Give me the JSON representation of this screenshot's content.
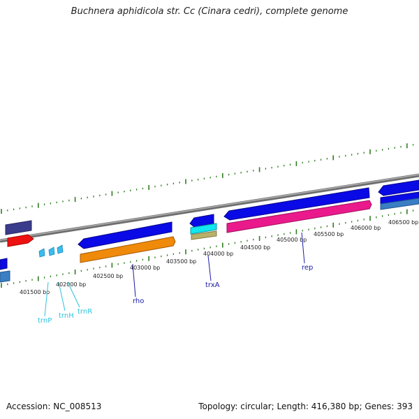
{
  "title": "Buchnera aphidicola str. Cc (Cinara cedri), complete genome",
  "footer": {
    "accession": "Accession: NC_008513",
    "summary": "Topology: circular; Length: 416,380 bp; Genes: 393"
  },
  "colors": {
    "backbone": "#8a8a8a",
    "ticks": "#2e7d1f",
    "cds_blue": "#0a0ae6",
    "cds_navy": "#3b3b8c",
    "cds_red": "#ee1111",
    "cds_orange": "#ef8a0a",
    "cds_magenta": "#ea1a8c",
    "cds_cyan": "#12e6ee",
    "cds_khaki": "#b9b06a",
    "cds_steel": "#3a7ec4",
    "trna": "#3bbcf0",
    "label_dark": "#1a1aa8",
    "label_cyan": "#2cc2dc"
  },
  "scale": {
    "ticks": [
      {
        "label": "401500 bp"
      },
      {
        "label": "402000 bp"
      },
      {
        "label": "402500 bp"
      },
      {
        "label": "403000 bp"
      },
      {
        "label": "403500 bp"
      },
      {
        "label": "404000 bp"
      },
      {
        "label": "404500 bp"
      },
      {
        "label": "405000 bp"
      },
      {
        "label": "405500 bp"
      },
      {
        "label": "406000 bp"
      },
      {
        "label": "406500 bp"
      }
    ]
  },
  "genes": {
    "labels": [
      {
        "name": "trnP",
        "color": "label_cyan"
      },
      {
        "name": "trnH",
        "color": "label_cyan"
      },
      {
        "name": "trnR",
        "color": "label_cyan"
      },
      {
        "name": "rho",
        "color": "label_dark"
      },
      {
        "name": "trxA",
        "color": "label_dark"
      },
      {
        "name": "rep",
        "color": "label_dark"
      }
    ]
  }
}
